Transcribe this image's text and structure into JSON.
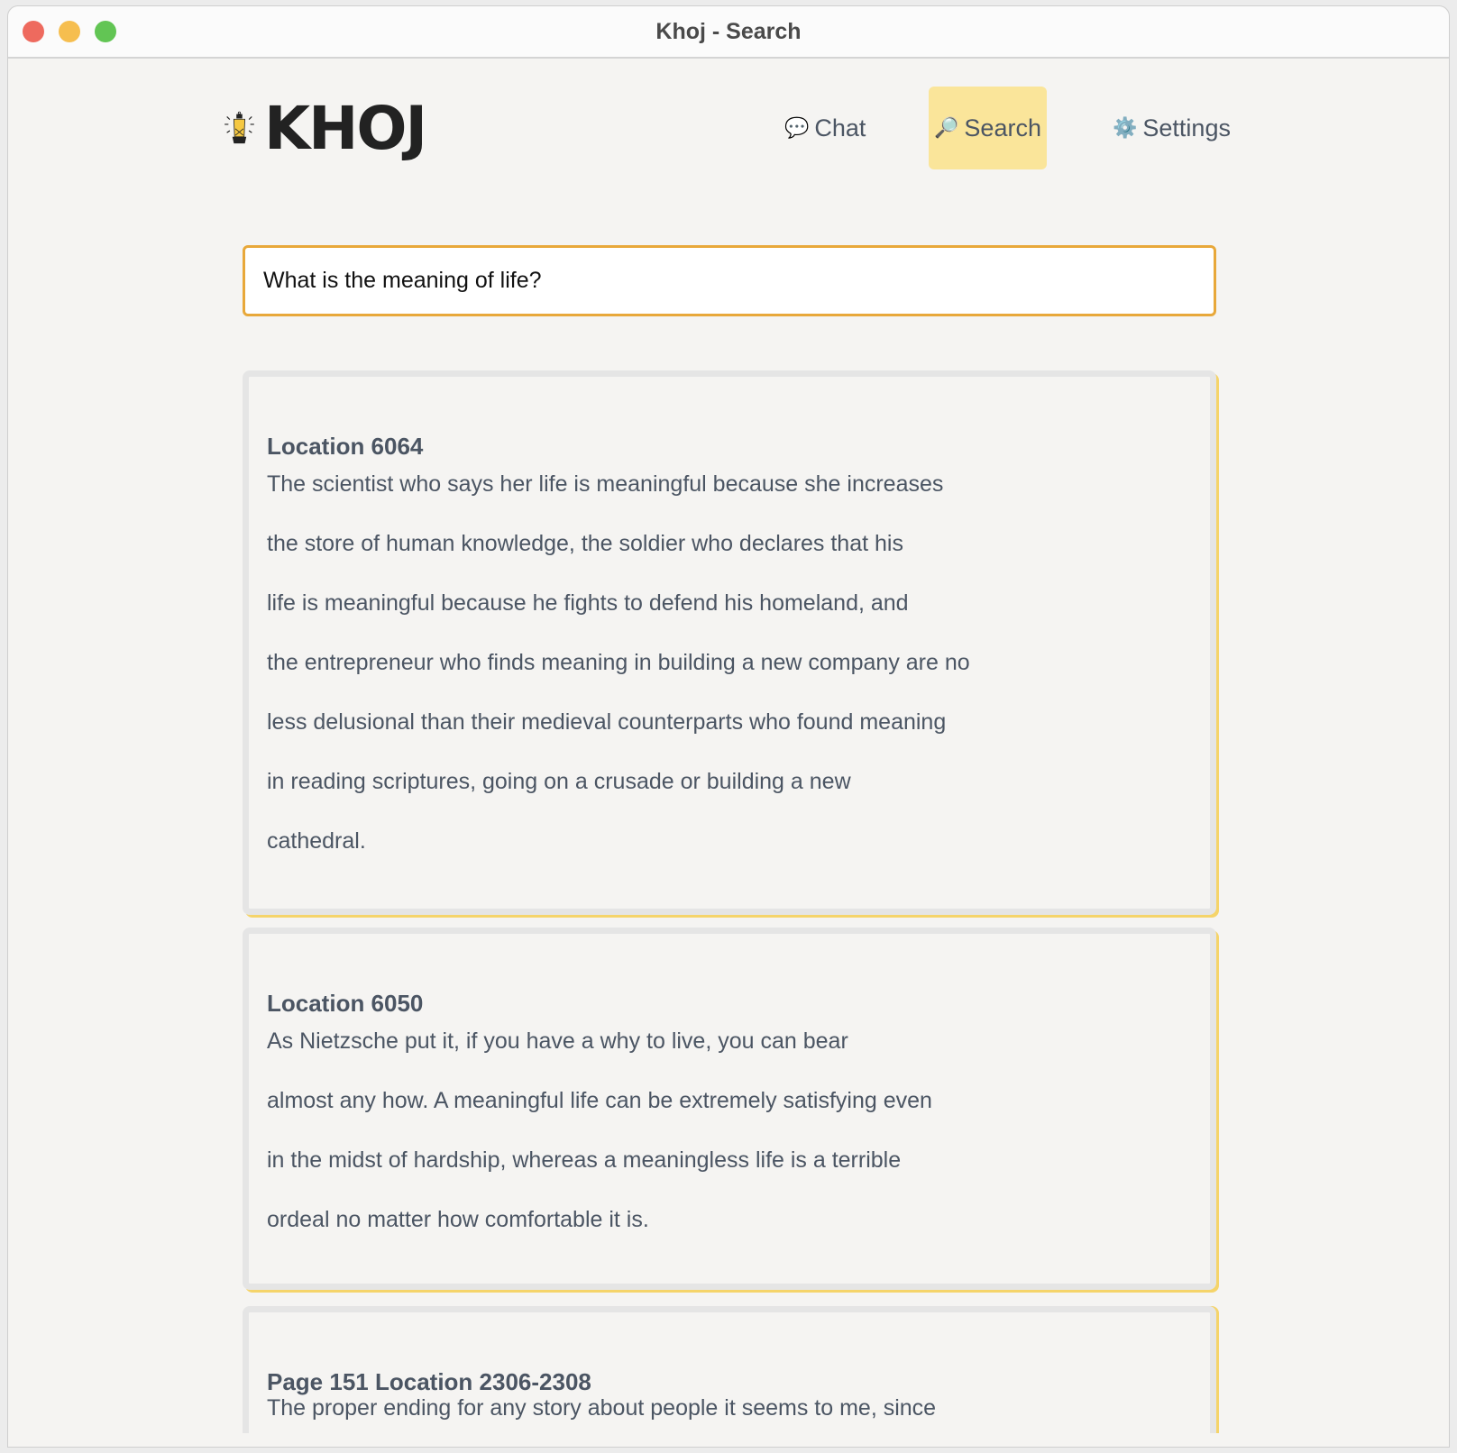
{
  "window": {
    "title": "Khoj - Search"
  },
  "logo": {
    "text": "KHOJ"
  },
  "nav": {
    "items": [
      {
        "label": "Chat",
        "icon": "speech-bubble-icon",
        "glyph": "💬"
      },
      {
        "label": "Search",
        "icon": "magnifier-icon",
        "glyph": "🔎",
        "active": true
      },
      {
        "label": "Settings",
        "icon": "gear-icon",
        "glyph": "⚙️"
      }
    ]
  },
  "search": {
    "value": "What is the meaning of life?"
  },
  "results": [
    {
      "title": "Location 6064",
      "lines": [
        "The scientist who says her life is meaningful because she increases",
        "the store of human knowledge, the soldier who declares that his",
        "life is meaningful because he fights to defend his homeland, and",
        "the entrepreneur who finds meaning in building a new company are no",
        "less delusional than their medieval counterparts who found meaning",
        "in reading scriptures, going on a crusade or building a new",
        "cathedral."
      ]
    },
    {
      "title": "Location 6050",
      "lines": [
        "As Nietzsche put it, if you have a why to live, you can bear",
        "almost any how. A meaningful life can be extremely satisfying even",
        "in the midst of hardship, whereas a meaningless life is a terrible",
        "ordeal no matter how comfortable it is."
      ]
    },
    {
      "title": "Page 151 Location 2306-2308",
      "lines": [
        "The proper ending for any story about people it seems to me, since"
      ]
    }
  ],
  "colors": {
    "accent": "#e8a83a",
    "active_nav": "#fae59a",
    "text": "#4b5563"
  }
}
